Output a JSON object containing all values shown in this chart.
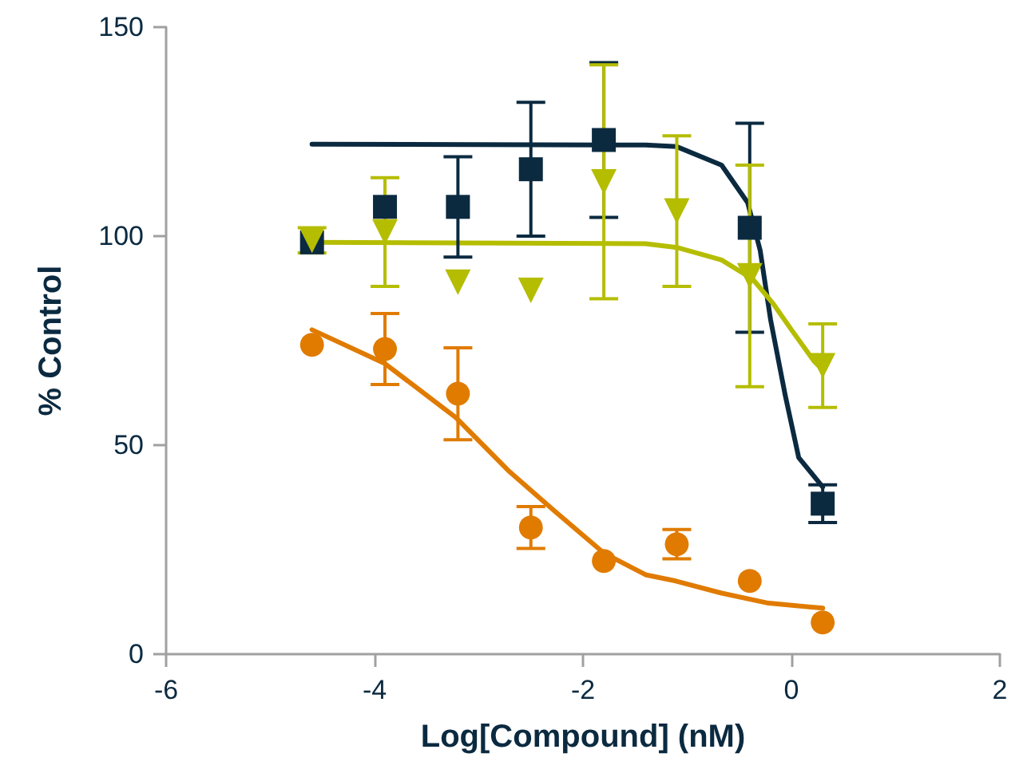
{
  "chart_data": {
    "type": "scatter",
    "xlabel": "Log[Compound] (nM)",
    "ylabel": "% Control",
    "xlim": [
      -6,
      2
    ],
    "xticks": [
      -6,
      -4,
      -2,
      0,
      2
    ],
    "ylim": [
      0,
      150
    ],
    "yticks": [
      0,
      50,
      100,
      150
    ],
    "grid": false,
    "series": [
      {
        "type": "line",
        "color": "#0b2a40",
        "marker": "none",
        "x": [
          -4.6,
          -1.4,
          -1.1,
          -0.67,
          -0.42,
          -0.3,
          -0.2,
          -0.06,
          0.07,
          0.3
        ],
        "values": [
          122,
          121.8,
          121.4,
          117,
          108,
          96.6,
          80,
          62,
          47,
          40
        ]
      },
      {
        "type": "line",
        "color": "#b5bd00",
        "marker": "none",
        "x": [
          -4.6,
          -1.4,
          -1.1,
          -0.67,
          -0.37,
          -0.18,
          0,
          0.22,
          0.3
        ],
        "values": [
          98.5,
          98.2,
          97.3,
          94.3,
          89.7,
          84,
          77.6,
          70,
          68
        ]
      },
      {
        "type": "line",
        "color": "#e07b00",
        "marker": "none",
        "x": [
          -4.6,
          -3.9,
          -3.22,
          -2.72,
          -2.28,
          -1.8,
          -1.4,
          -1.11,
          -0.67,
          -0.22,
          0.3
        ],
        "values": [
          77.6,
          69.5,
          56.6,
          44,
          34.4,
          24.2,
          19,
          17.5,
          14.6,
          12.2,
          11
        ]
      },
      {
        "color": "#0b2a40",
        "marker": "square",
        "x": [
          -4.6,
          -3.9,
          -3.2,
          -2.5,
          -1.8,
          -1.1,
          -0.4,
          0.3
        ],
        "values": [
          98.5,
          107,
          107,
          116,
          123,
          null,
          102,
          36
        ],
        "errors": [
          null,
          null,
          12,
          16,
          18.5,
          null,
          25,
          4.5
        ]
      },
      {
        "color": "#b5bd00",
        "marker": "triangle",
        "x": [
          -4.6,
          -3.9,
          -3.2,
          -2.5,
          -1.8,
          -1.1,
          -0.4,
          0.3
        ],
        "values": [
          99,
          101,
          89,
          87,
          113,
          106,
          90.5,
          69
        ],
        "errors": [
          3,
          13,
          null,
          null,
          28,
          18,
          26.5,
          10
        ]
      },
      {
        "color": "#e07b00",
        "marker": "circle",
        "x": [
          -4.6,
          -3.9,
          -3.2,
          -2.5,
          -1.8,
          -1.1,
          -0.4,
          0.3
        ],
        "values": [
          74,
          73,
          62.3,
          30.3,
          22.3,
          26.3,
          17.5,
          7.6
        ],
        "errors": [
          null,
          8.5,
          11,
          5,
          null,
          3.5,
          null,
          null
        ]
      }
    ]
  }
}
